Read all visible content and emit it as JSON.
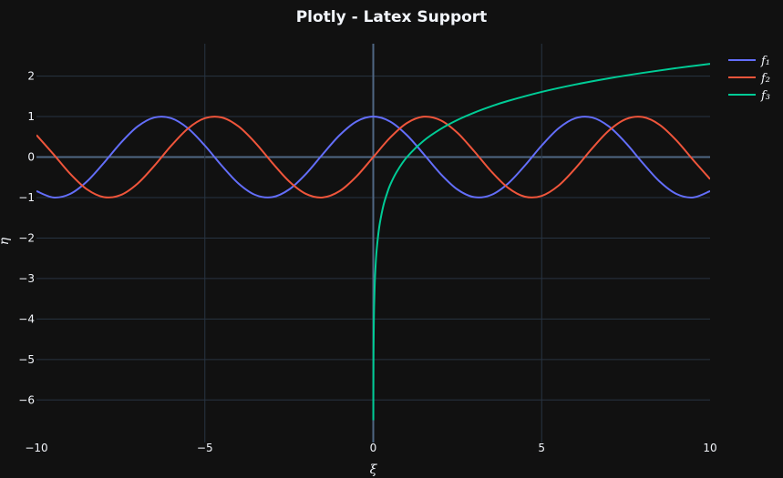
{
  "chart_data": {
    "type": "line",
    "title": "Plotly - Latex Support",
    "xlabel": "ξ",
    "ylabel": "η",
    "xlim": [
      -10,
      10
    ],
    "ylim": [
      -7.05,
      2.8
    ],
    "x_ticks": [
      -10,
      -5,
      0,
      5,
      10
    ],
    "y_ticks": [
      2,
      1,
      0,
      -1,
      -2,
      -3,
      -4,
      -5,
      -6
    ],
    "x_tick_labels": [
      "−10",
      "−5",
      "0",
      "5",
      "10"
    ],
    "y_tick_labels": [
      "2",
      "1",
      "0",
      "−1",
      "−2",
      "−3",
      "−4",
      "−5",
      "−6"
    ],
    "grid": true,
    "legend_position": "top-right",
    "series": [
      {
        "name": "f₁",
        "color": "#636efa",
        "x": [
          -10,
          -9.5,
          -9,
          -8.5,
          -8,
          -7.5,
          -7,
          -6.5,
          -6,
          -5.5,
          -5,
          -4.5,
          -4,
          -3.5,
          -3,
          -2.5,
          -2,
          -1.5,
          -1,
          -0.5,
          0,
          0.5,
          1,
          1.5,
          2,
          2.5,
          3,
          3.5,
          4,
          4.5,
          5,
          5.5,
          6,
          6.5,
          7,
          7.5,
          8,
          8.5,
          9,
          9.5,
          10
        ],
        "values": [
          -0.84,
          -0.997,
          -0.911,
          -0.602,
          -0.146,
          0.347,
          0.754,
          0.977,
          0.96,
          0.709,
          0.284,
          -0.211,
          -0.654,
          -0.936,
          -0.99,
          -0.801,
          -0.416,
          0.071,
          0.54,
          0.878,
          1.0,
          0.878,
          0.54,
          0.071,
          -0.416,
          -0.801,
          -0.99,
          -0.936,
          -0.654,
          -0.211,
          0.284,
          0.709,
          0.96,
          0.977,
          0.754,
          0.347,
          -0.146,
          -0.602,
          -0.911,
          -0.997,
          -0.84
        ]
      },
      {
        "name": "f₂",
        "color": "#ef553b",
        "x": [
          -10,
          -9.5,
          -9,
          -8.5,
          -8,
          -7.5,
          -7,
          -6.5,
          -6,
          -5.5,
          -5,
          -4.5,
          -4,
          -3.5,
          -3,
          -2.5,
          -2,
          -1.5,
          -1,
          -0.5,
          0,
          0.5,
          1,
          1.5,
          2,
          2.5,
          3,
          3.5,
          4,
          4.5,
          5,
          5.5,
          6,
          6.5,
          7,
          7.5,
          8,
          8.5,
          9,
          9.5,
          10
        ],
        "values": [
          0.544,
          0.075,
          -0.412,
          -0.798,
          -0.989,
          -0.938,
          -0.657,
          -0.215,
          0.279,
          0.706,
          0.959,
          0.978,
          0.757,
          0.351,
          -0.141,
          -0.598,
          -0.909,
          -0.997,
          -0.841,
          -0.479,
          0.0,
          0.479,
          0.841,
          0.997,
          0.909,
          0.598,
          0.141,
          -0.351,
          -0.757,
          -0.978,
          -0.959,
          -0.706,
          -0.279,
          0.215,
          0.657,
          0.938,
          0.989,
          0.798,
          0.412,
          -0.075,
          -0.544
        ]
      },
      {
        "name": "f₃",
        "color": "#00cc96",
        "x": [
          0.0015,
          0.003,
          0.006,
          0.01,
          0.02,
          0.04,
          0.07,
          0.1,
          0.15,
          0.2,
          0.3,
          0.4,
          0.5,
          0.7,
          1.0,
          1.5,
          2,
          2.5,
          3,
          3.5,
          4,
          5,
          6,
          7,
          8,
          9,
          10
        ],
        "values": [
          -6.5,
          -5.81,
          -5.12,
          -4.61,
          -3.91,
          -3.22,
          -2.66,
          -2.3,
          -1.9,
          -1.61,
          -1.2,
          -0.92,
          -0.69,
          -0.36,
          0.0,
          0.405,
          0.693,
          0.916,
          1.099,
          1.253,
          1.386,
          1.609,
          1.792,
          1.946,
          2.079,
          2.197,
          2.303
        ]
      }
    ]
  }
}
